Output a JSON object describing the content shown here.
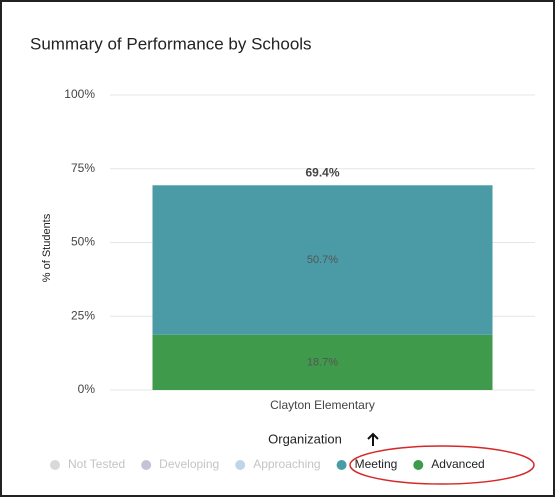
{
  "chart_data": {
    "type": "stacked_bar",
    "title": "Summary of Performance by Schools",
    "y_label": "% of Students",
    "x_label": "Organization",
    "categories": [
      "Clayton Elementary"
    ],
    "series": [
      {
        "name": "Not Tested",
        "color": "#d9d9d9",
        "visible": false,
        "values": [
          null
        ]
      },
      {
        "name": "Developing",
        "color": "#c4c4d9",
        "visible": false,
        "values": [
          null
        ]
      },
      {
        "name": "Approaching",
        "color": "#c2d4ea",
        "visible": false,
        "values": [
          null
        ]
      },
      {
        "name": "Meeting",
        "color": "#4a9ba6",
        "visible": true,
        "values": [
          50.7
        ],
        "value_labels": [
          "50.7%"
        ]
      },
      {
        "name": "Advanced",
        "color": "#3f9a4b",
        "visible": true,
        "values": [
          18.7
        ],
        "value_labels": [
          "18.7%"
        ]
      }
    ],
    "totals": [
      69.4
    ],
    "total_labels": [
      "69.4%"
    ],
    "ylim": [
      0,
      100
    ],
    "yticks": [
      {
        "value": 0,
        "label": "0%"
      },
      {
        "value": 25,
        "label": "25%"
      },
      {
        "value": 50,
        "label": "50%"
      },
      {
        "value": 75,
        "label": "75%"
      },
      {
        "value": 100,
        "label": "100%"
      }
    ],
    "grid": true
  }
}
